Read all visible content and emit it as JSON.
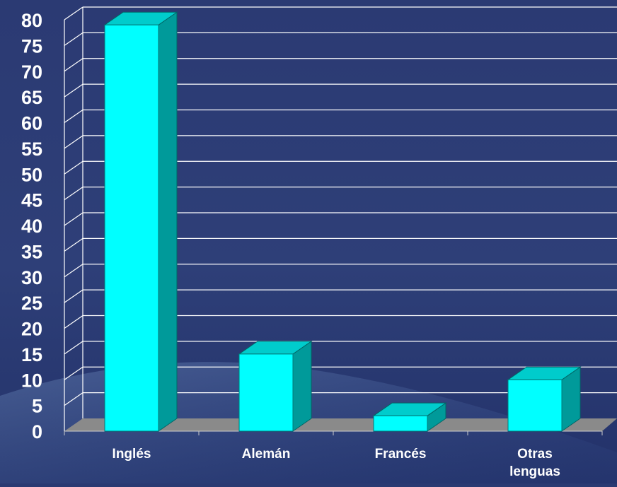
{
  "chart_data": {
    "type": "bar",
    "categories": [
      [
        "Inglés"
      ],
      [
        "Alemán"
      ],
      [
        "Francés"
      ],
      [
        "Otras",
        "lenguas"
      ]
    ],
    "values": [
      79,
      15,
      3,
      10
    ],
    "ylim": [
      0,
      80
    ],
    "yticks": [
      0,
      5,
      10,
      15,
      20,
      25,
      30,
      35,
      40,
      45,
      50,
      55,
      60,
      65,
      70,
      75,
      80
    ],
    "grid": true,
    "legend": "none",
    "style": "3d",
    "colors": {
      "bar_front": "#00ffff",
      "bar_top": "#00cccc",
      "bar_side": "#009a9a",
      "floor": "#8a8a8a",
      "grid": "#ffffff",
      "background": "#2a3a72",
      "text": "#ffffff"
    }
  }
}
